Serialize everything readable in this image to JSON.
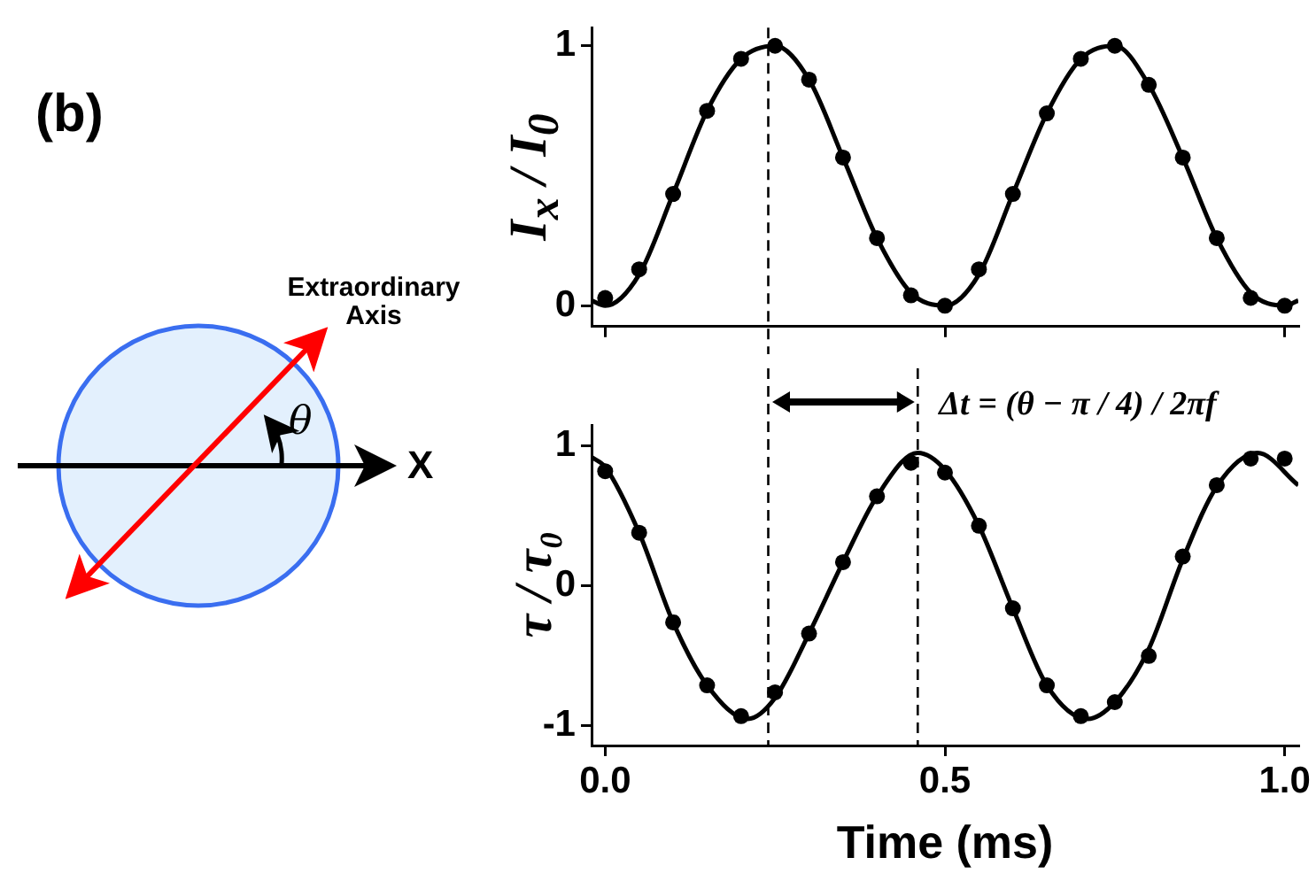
{
  "chart_data": [
    {
      "type": "scatter",
      "ylabel": "I$_{x}$ / I$_{0}$",
      "annotations": [
        "(b)",
        "Extraordinary Axis",
        "θ",
        "X"
      ],
      "xlim": [
        -0.02,
        1.02
      ],
      "xticks": [
        {
          "value": 0,
          "label": null
        },
        {
          "value": 0.5,
          "label": null
        },
        {
          "value": 1,
          "label": null
        }
      ],
      "ylim": [
        -0.08,
        1.07
      ],
      "yticks": [
        0,
        1
      ],
      "tick_labels": "y",
      "line_style": "solid",
      "ref_lines": [
        {
          "axis": "x",
          "value": 0.24,
          "line_style": "dashed",
          "color": "#000000"
        }
      ],
      "series": [
        {
          "marker": "circle",
          "color": "#000000",
          "x": [
            0,
            0.05,
            0.1,
            0.15,
            0.2,
            0.25,
            0.3,
            0.35,
            0.4,
            0.45,
            0.5,
            0.55,
            0.6,
            0.65,
            0.7,
            0.75,
            0.8,
            0.85,
            0.9,
            0.95,
            1.0
          ],
          "values": [
            0.03,
            0.14,
            0.43,
            0.75,
            0.95,
            1.0,
            0.87,
            0.57,
            0.26,
            0.04,
            0.0,
            0.14,
            0.43,
            0.74,
            0.95,
            1.0,
            0.85,
            0.57,
            0.26,
            0.03,
            0.0
          ]
        },
        {
          "type": "line",
          "marker": "none",
          "color": "#000000",
          "x": [
            -0.02,
            0,
            0.05,
            0.1,
            0.15,
            0.2,
            0.25,
            0.3,
            0.35,
            0.4,
            0.45,
            0.5,
            0.55,
            0.6,
            0.65,
            0.7,
            0.75,
            0.8,
            0.85,
            0.9,
            0.95,
            1.0,
            1.02
          ],
          "values": [
            0.02,
            0,
            0.12,
            0.43,
            0.75,
            0.95,
            1.0,
            0.87,
            0.57,
            0.26,
            0.05,
            0,
            0.12,
            0.43,
            0.74,
            0.95,
            1.0,
            0.85,
            0.57,
            0.26,
            0.05,
            0,
            0.02
          ]
        }
      ]
    },
    {
      "type": "scatter",
      "xlabel": "Time (ms)",
      "ylabel": "τ / τ₀",
      "annotations": [
        "Δt = (θ − π / 4) / 2πf"
      ],
      "xlim": [
        -0.02,
        1.02
      ],
      "xticks": [
        {
          "value": 0,
          "label": "0.0"
        },
        {
          "value": 0.5,
          "label": "0.5"
        },
        {
          "value": 1,
          "label": "1.0"
        }
      ],
      "ylim": [
        -1.14,
        1.15
      ],
      "yticks": [
        -1,
        0,
        1
      ],
      "line_style": "solid",
      "ref_lines": [
        {
          "axis": "x",
          "value": 0.24,
          "line_style": "dashed",
          "color": "#000000"
        },
        {
          "axis": "x",
          "value": 0.46,
          "line_style": "dashed",
          "color": "#000000"
        }
      ],
      "series": [
        {
          "marker": "circle",
          "color": "#000000",
          "x": [
            0,
            0.05,
            0.1,
            0.15,
            0.2,
            0.25,
            0.3,
            0.35,
            0.4,
            0.45,
            0.5,
            0.55,
            0.6,
            0.65,
            0.7,
            0.75,
            0.8,
            0.85,
            0.9,
            0.95,
            1.0
          ],
          "values": [
            0.82,
            0.38,
            -0.26,
            -0.71,
            -0.93,
            -0.76,
            -0.34,
            0.17,
            0.64,
            0.88,
            0.81,
            0.43,
            -0.16,
            -0.71,
            -0.93,
            -0.83,
            -0.5,
            0.21,
            0.72,
            0.91,
            0.91
          ]
        },
        {
          "type": "line",
          "marker": "none",
          "color": "#000000",
          "x": [
            -0.02,
            0,
            0.05,
            0.1,
            0.15,
            0.21,
            0.25,
            0.3,
            0.35,
            0.4,
            0.46,
            0.5,
            0.55,
            0.6,
            0.65,
            0.71,
            0.75,
            0.8,
            0.85,
            0.9,
            0.96,
            1.02
          ],
          "values": [
            0.92,
            0.85,
            0.38,
            -0.26,
            -0.71,
            -0.95,
            -0.8,
            -0.34,
            0.17,
            0.64,
            0.95,
            0.83,
            0.43,
            -0.16,
            -0.71,
            -0.95,
            -0.83,
            -0.45,
            0.19,
            0.71,
            0.95,
            0.72
          ]
        }
      ]
    }
  ]
}
